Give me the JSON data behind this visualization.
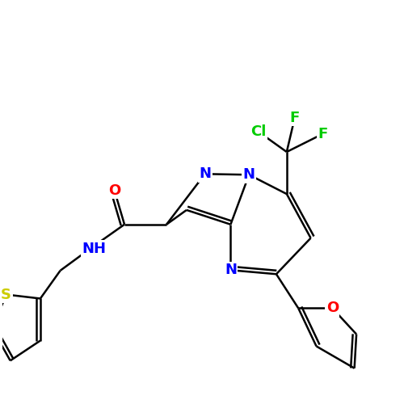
{
  "background_color": "#ffffff",
  "bond_color": "#000000",
  "n_color": "#0000ff",
  "o_color": "#ff0000",
  "s_color": "#cccc00",
  "cl_color": "#00cc00",
  "f_color": "#00cc00",
  "fig_size": [
    5.0,
    5.0
  ],
  "dpi": 100,
  "lw": 1.8,
  "fs": 13,
  "xlim": [
    0,
    10
  ],
  "ylim": [
    0,
    10
  ]
}
